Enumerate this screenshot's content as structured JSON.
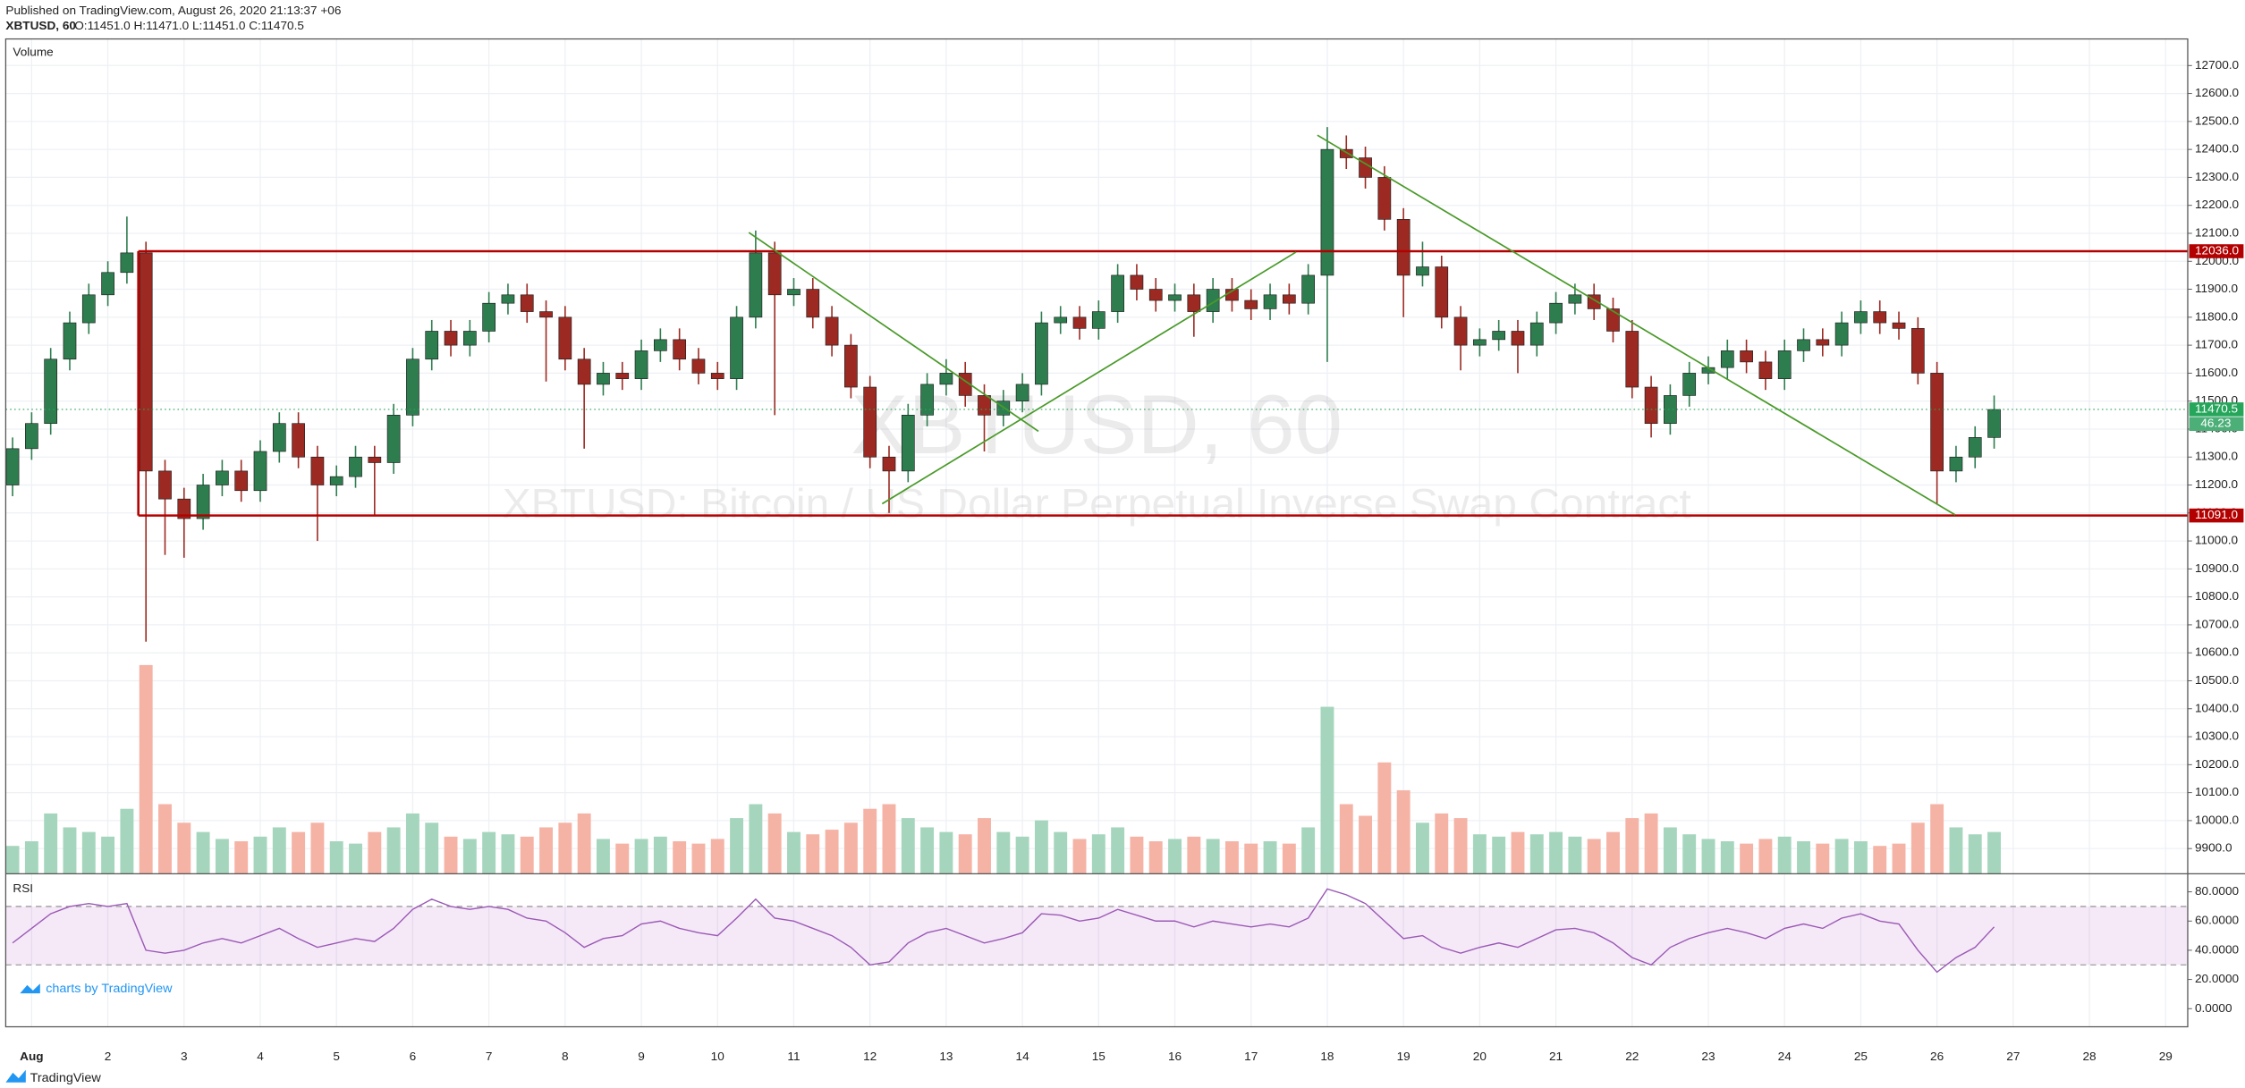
{
  "header": {
    "published": "Published on TradingView.com, August 26, 2020 21:13:37 +06",
    "symbol": "XBTUSD, 60",
    "ohlc": "O:11451.0 H:11471.0 L:11451.0 C:11470.5"
  },
  "branding": {
    "charts_by": "charts by TradingView",
    "logo": "TradingView"
  },
  "chart_data": {
    "type": "candlestick",
    "watermark": "XBTUSD, 60",
    "watermark_subtitle": "XBTUSD: Bitcoin / US Dollar Perpetual Inverse Swap Contract",
    "volume_label": "Volume",
    "up_color": "#2e7d4f",
    "down_color": "#9c2a22",
    "volume_up_color": "#a5d6bd",
    "volume_down_color": "#f5b3a6",
    "grid": true,
    "x": [
      0.75,
      1,
      1.25,
      1.5,
      1.75,
      2,
      2.25,
      2.5,
      2.75,
      3,
      3.25,
      3.5,
      3.75,
      4,
      4.25,
      4.5,
      4.75,
      5,
      5.25,
      5.5,
      5.75,
      6,
      6.25,
      6.5,
      6.75,
      7,
      7.25,
      7.5,
      7.75,
      8,
      8.25,
      8.5,
      8.75,
      9,
      9.25,
      9.5,
      9.75,
      10,
      10.25,
      10.5,
      10.75,
      11,
      11.25,
      11.5,
      11.75,
      12,
      12.25,
      12.5,
      12.75,
      13,
      13.25,
      13.5,
      13.75,
      14,
      14.25,
      14.5,
      14.75,
      15,
      15.25,
      15.5,
      15.75,
      16,
      16.25,
      16.5,
      16.75,
      17,
      17.25,
      17.5,
      17.75,
      18,
      18.25,
      18.5,
      18.75,
      19,
      19.25,
      19.5,
      19.75,
      20,
      20.25,
      20.5,
      20.75,
      21,
      21.25,
      21.5,
      21.75,
      22,
      22.25,
      22.5,
      22.75,
      23,
      23.25,
      23.5,
      23.75,
      24,
      24.25,
      24.5,
      24.75,
      25,
      25.25,
      25.5,
      25.75,
      26,
      26.25,
      26.5,
      26.75
    ],
    "open": [
      11200,
      11330,
      11420,
      11650,
      11780,
      11880,
      11960,
      12030,
      11250,
      11150,
      11080,
      11200,
      11250,
      11180,
      11320,
      11420,
      11300,
      11200,
      11230,
      11300,
      11280,
      11450,
      11650,
      11750,
      11700,
      11750,
      11850,
      11880,
      11820,
      11800,
      11650,
      11560,
      11600,
      11580,
      11680,
      11720,
      11650,
      11600,
      11580,
      11800,
      12030,
      11880,
      11900,
      11800,
      11700,
      11550,
      11300,
      11250,
      11450,
      11560,
      11600,
      11520,
      11450,
      11500,
      11560,
      11780,
      11800,
      11760,
      11820,
      11950,
      11900,
      11860,
      11880,
      11820,
      11900,
      11860,
      11830,
      11880,
      11850,
      11950,
      12400,
      12370,
      12300,
      12150,
      11950,
      11980,
      11800,
      11700,
      11720,
      11750,
      11700,
      11780,
      11850,
      11880,
      11830,
      11750,
      11550,
      11420,
      11520,
      11600,
      11620,
      11680,
      11640,
      11580,
      11680,
      11720,
      11700,
      11780,
      11820,
      11780,
      11760,
      11600,
      11250,
      11300,
      11370
    ],
    "high": [
      11370,
      11460,
      11690,
      11820,
      11920,
      12000,
      12160,
      12070,
      11290,
      11190,
      11240,
      11290,
      11290,
      11360,
      11460,
      11460,
      11340,
      11270,
      11340,
      11340,
      11490,
      11690,
      11790,
      11790,
      11790,
      11890,
      11920,
      11920,
      11860,
      11840,
      11690,
      11640,
      11640,
      11720,
      11760,
      11760,
      11690,
      11640,
      11840,
      12110,
      12070,
      11940,
      11940,
      11840,
      11740,
      11590,
      11340,
      11490,
      11600,
      11650,
      11640,
      11560,
      11540,
      11600,
      11820,
      11840,
      11840,
      11860,
      11990,
      11990,
      11940,
      11920,
      11920,
      11940,
      11940,
      11900,
      11920,
      11920,
      11990,
      12480,
      12450,
      12410,
      12340,
      12190,
      12070,
      12020,
      11840,
      11760,
      11790,
      11790,
      11820,
      11890,
      11920,
      11920,
      11870,
      11790,
      11590,
      11560,
      11640,
      11660,
      11720,
      11720,
      11680,
      11720,
      11760,
      11760,
      11820,
      11860,
      11860,
      11820,
      11800,
      11640,
      11340,
      11410,
      11520
    ],
    "low": [
      11160,
      11290,
      11380,
      11610,
      11740,
      11840,
      11920,
      10640,
      10950,
      10940,
      11040,
      11160,
      11140,
      11140,
      11280,
      11260,
      11000,
      11160,
      11190,
      11090,
      11240,
      11410,
      11610,
      11660,
      11660,
      11710,
      11810,
      11780,
      11570,
      11610,
      11330,
      11520,
      11540,
      11540,
      11640,
      11610,
      11560,
      11540,
      11540,
      11760,
      11450,
      11840,
      11760,
      11660,
      11510,
      11260,
      11100,
      11210,
      11410,
      11520,
      11480,
      11320,
      11410,
      11460,
      11520,
      11740,
      11720,
      11720,
      11780,
      11860,
      11820,
      11820,
      11730,
      11780,
      11820,
      11790,
      11790,
      11810,
      11810,
      11640,
      12330,
      12260,
      12110,
      11800,
      11910,
      11760,
      11610,
      11660,
      11680,
      11600,
      11660,
      11740,
      11810,
      11790,
      11710,
      11510,
      11370,
      11380,
      11480,
      11560,
      11580,
      11600,
      11540,
      11540,
      11640,
      11660,
      11660,
      11740,
      11740,
      11720,
      11560,
      11130,
      11210,
      11260,
      11330
    ],
    "close": [
      11330,
      11420,
      11650,
      11780,
      11880,
      11960,
      12030,
      11250,
      11150,
      11080,
      11200,
      11250,
      11180,
      11320,
      11420,
      11300,
      11200,
      11230,
      11300,
      11280,
      11450,
      11650,
      11750,
      11700,
      11750,
      11850,
      11880,
      11820,
      11800,
      11650,
      11560,
      11600,
      11580,
      11680,
      11720,
      11650,
      11600,
      11580,
      11800,
      12030,
      11880,
      11900,
      11800,
      11700,
      11550,
      11300,
      11250,
      11450,
      11560,
      11600,
      11520,
      11450,
      11500,
      11560,
      11780,
      11800,
      11760,
      11820,
      11950,
      11900,
      11860,
      11880,
      11820,
      11900,
      11860,
      11830,
      11880,
      11850,
      11950,
      12400,
      12370,
      12300,
      12150,
      11950,
      11980,
      11800,
      11700,
      11720,
      11750,
      11700,
      11780,
      11850,
      11880,
      11830,
      11750,
      11550,
      11420,
      11520,
      11600,
      11620,
      11680,
      11640,
      11580,
      11680,
      11720,
      11700,
      11780,
      11820,
      11780,
      11760,
      11600,
      11250,
      11300,
      11370,
      11470
    ],
    "volume": [
      120,
      140,
      260,
      200,
      180,
      160,
      280,
      900,
      300,
      220,
      180,
      150,
      140,
      160,
      200,
      180,
      220,
      140,
      130,
      180,
      200,
      260,
      220,
      160,
      150,
      180,
      170,
      160,
      200,
      220,
      260,
      150,
      130,
      150,
      160,
      140,
      130,
      150,
      240,
      300,
      260,
      180,
      170,
      190,
      220,
      280,
      300,
      240,
      200,
      180,
      170,
      240,
      180,
      160,
      230,
      180,
      150,
      170,
      200,
      160,
      140,
      150,
      160,
      150,
      140,
      130,
      140,
      130,
      200,
      720,
      300,
      250,
      480,
      360,
      220,
      260,
      240,
      170,
      160,
      180,
      170,
      180,
      160,
      150,
      180,
      240,
      260,
      200,
      170,
      150,
      140,
      130,
      150,
      160,
      140,
      130,
      150,
      140,
      120,
      130,
      220,
      300,
      200,
      170,
      180
    ],
    "volume_value": 46.23,
    "xlim": [
      0.66,
      29.29
    ],
    "xticks": [
      {
        "value": 1,
        "label": "Aug"
      },
      2,
      3,
      4,
      5,
      6,
      7,
      8,
      9,
      10,
      11,
      12,
      13,
      14,
      15,
      16,
      17,
      18,
      19,
      20,
      21,
      22,
      23,
      24,
      25,
      26,
      27,
      28,
      29
    ],
    "ylim": [
      9810,
      12795
    ],
    "yticks": [
      {
        "value": 9900,
        "label": "9900.0"
      },
      {
        "value": 10000,
        "label": "10000.0"
      },
      {
        "value": 10100,
        "label": "10100.0"
      },
      {
        "value": 10200,
        "label": "10200.0"
      },
      {
        "value": 10300,
        "label": "10300.0"
      },
      {
        "value": 10400,
        "label": "10400.0"
      },
      {
        "value": 10500,
        "label": "10500.0"
      },
      {
        "value": 10600,
        "label": "10600.0"
      },
      {
        "value": 10700,
        "label": "10700.0"
      },
      {
        "value": 10800,
        "label": "10800.0"
      },
      {
        "value": 10900,
        "label": "10900.0"
      },
      {
        "value": 11000,
        "label": "11000.0"
      },
      {
        "value": 11100,
        "label": "11100.0"
      },
      {
        "value": 11200,
        "label": "11200.0"
      },
      {
        "value": 11300,
        "label": "11300.0"
      },
      {
        "value": 11400,
        "label": "11400.0"
      },
      {
        "value": 11500,
        "label": "11500.0"
      },
      {
        "value": 11600,
        "label": "11600.0"
      },
      {
        "value": 11700,
        "label": "11700.0"
      },
      {
        "value": 11800,
        "label": "11800.0"
      },
      {
        "value": 11900,
        "label": "11900.0"
      },
      {
        "value": 12000,
        "label": "12000.0"
      },
      {
        "value": 12100,
        "label": "12100.0"
      },
      {
        "value": 12200,
        "label": "12200.0"
      },
      {
        "value": 12300,
        "label": "12300.0"
      },
      {
        "value": 12400,
        "label": "12400.0"
      },
      {
        "value": 12500,
        "label": "12500.0"
      },
      {
        "value": 12600,
        "label": "12600.0"
      },
      {
        "value": 12700,
        "label": "12700.0"
      }
    ],
    "last_price": {
      "value": 11470.5,
      "label": "11470.5"
    },
    "last_color": "#26a65b",
    "levels": [
      {
        "value": 12036,
        "label": "12036.0"
      },
      {
        "value": 11091,
        "label": "11091.0"
      }
    ],
    "level_color": "#b30000",
    "rectangle_start": 2.4,
    "trendline_color": "#4a9a2a",
    "trendlines": [
      {
        "x": [
          10.41,
          14.21
        ],
        "y": [
          12103,
          11392
        ]
      },
      {
        "x": [
          12.16,
          17.59
        ],
        "y": [
          11133,
          12033
        ]
      },
      {
        "x": [
          17.87,
          26.24
        ],
        "y": [
          12451,
          11093
        ]
      }
    ],
    "rsi": {
      "label": "RSI",
      "color": "#9b59b6",
      "band": [
        30,
        70
      ],
      "ylim": [
        -12.4,
        92.4
      ],
      "yticks": [
        {
          "value": 80,
          "label": "80.0000"
        },
        {
          "value": 60,
          "label": "60.0000"
        },
        {
          "value": 40,
          "label": "40.0000"
        },
        {
          "value": 20,
          "label": "20.0000"
        },
        {
          "value": 0,
          "label": "0.0000"
        }
      ],
      "values": [
        45,
        55,
        65,
        70,
        72,
        70,
        72,
        40,
        38,
        40,
        45,
        48,
        45,
        50,
        55,
        48,
        42,
        45,
        48,
        46,
        55,
        68,
        75,
        70,
        68,
        70,
        68,
        62,
        60,
        52,
        42,
        48,
        50,
        58,
        60,
        55,
        52,
        50,
        62,
        75,
        62,
        60,
        55,
        50,
        42,
        30,
        32,
        45,
        52,
        55,
        50,
        45,
        48,
        52,
        65,
        64,
        60,
        62,
        68,
        64,
        60,
        60,
        56,
        60,
        58,
        56,
        58,
        56,
        62,
        82,
        78,
        72,
        60,
        48,
        50,
        42,
        38,
        42,
        45,
        42,
        48,
        54,
        55,
        52,
        45,
        35,
        30,
        42,
        48,
        52,
        55,
        52,
        48,
        55,
        58,
        55,
        62,
        65,
        60,
        58,
        40,
        25,
        35,
        42,
        56
      ]
    }
  }
}
